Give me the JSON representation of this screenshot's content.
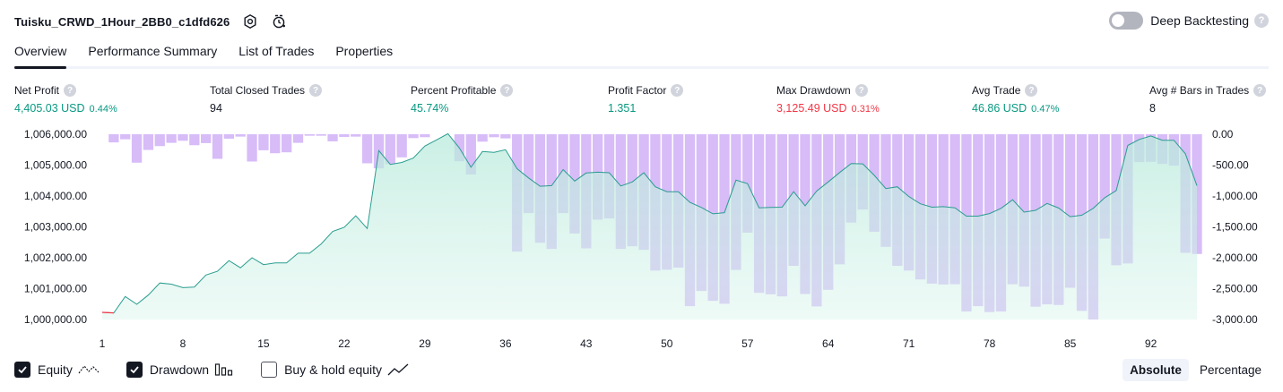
{
  "header": {
    "title": "Tuisku_CRWD_1Hour_2BB0_c1dfd626",
    "deep_backtesting_label": "Deep Backtesting",
    "deep_backtesting_enabled": false,
    "help_glyph": "?",
    "icons": [
      "settings-icon",
      "source-code-icon",
      "help-icon"
    ]
  },
  "tabs": [
    {
      "label": "Overview",
      "active": true
    },
    {
      "label": "Performance Summary",
      "active": false
    },
    {
      "label": "List of Trades",
      "active": false
    },
    {
      "label": "Properties",
      "active": false
    }
  ],
  "metrics": {
    "net_profit": {
      "label": "Net Profit",
      "value": "4,405.03 USD",
      "pct": "0.44%",
      "color": "#089981"
    },
    "total_closed_trades": {
      "label": "Total Closed Trades",
      "value": "94"
    },
    "percent_profitable": {
      "label": "Percent Profitable",
      "value": "45.74%",
      "color": "#089981"
    },
    "profit_factor": {
      "label": "Profit Factor",
      "value": "1.351",
      "color": "#089981"
    },
    "max_drawdown": {
      "label": "Max Drawdown",
      "value": "3,125.49 USD",
      "pct": "0.31%",
      "color": "#f23645"
    },
    "avg_trade": {
      "label": "Avg Trade",
      "value": "46.86 USD",
      "pct": "0.47%",
      "color": "#089981"
    },
    "avg_bars": {
      "label": "Avg # Bars in Trades",
      "value": "8"
    }
  },
  "chart_data": {
    "type": "area",
    "x_ticks": [
      "1",
      "8",
      "15",
      "22",
      "29",
      "36",
      "43",
      "50",
      "57",
      "64",
      "71",
      "78",
      "85",
      "92"
    ],
    "x_range": [
      1,
      96
    ],
    "left_axis": {
      "ticks": [
        "1,006,000.00",
        "1,005,000.00",
        "1,004,000.00",
        "1,003,000.00",
        "1,002,000.00",
        "1,001,000.00",
        "1,000,000.00"
      ],
      "range": [
        999750,
        1006200
      ]
    },
    "right_axis": {
      "ticks": [
        "0.00",
        "-500.00",
        "-1,000.00",
        "-1,500.00",
        "-2,000.00",
        "-2,500.00",
        "-3,000.00"
      ],
      "range": [
        -3125.49,
        0
      ]
    },
    "series": [
      {
        "name": "Equity",
        "kind": "area",
        "color": "#2a9d8f",
        "values": [
          1000000,
          999980,
          1000550,
          1000280,
          1000600,
          1001020,
          1000980,
          1000860,
          1000880,
          1001300,
          1001430,
          1001800,
          1001550,
          1001900,
          1001660,
          1001720,
          1001720,
          1002060,
          1002060,
          1002380,
          1002820,
          1002960,
          1003360,
          1002920,
          1005630,
          1005150,
          1005220,
          1005370,
          1005790,
          1006000,
          1006220,
          1005720,
          1005050,
          1005600,
          1005570,
          1005660,
          1005000,
          1004680,
          1004390,
          1004410,
          1004970,
          1004570,
          1004850,
          1004880,
          1004860,
          1004400,
          1004540,
          1004860,
          1004370,
          1004200,
          1004200,
          1003830,
          1003650,
          1003430,
          1003470,
          1004600,
          1004480,
          1003640,
          1003650,
          1003660,
          1004200,
          1003710,
          1004220,
          1004540,
          1004870,
          1005180,
          1005170,
          1004770,
          1004310,
          1004370,
          1004030,
          1003780,
          1003660,
          1003680,
          1003640,
          1003350,
          1003350,
          1003440,
          1003620,
          1003920,
          1003490,
          1003550,
          1003790,
          1003630,
          1003330,
          1003380,
          1003620,
          1003990,
          1004240,
          1005810,
          1006020,
          1006140,
          1005990,
          1005990,
          1005520,
          1004410
        ]
      },
      {
        "name": "Drawdown",
        "kind": "bar",
        "color": "#c9a6f6",
        "values": [
          0,
          -137,
          -85,
          -480,
          -265,
          -200,
          -145,
          -110,
          -185,
          -150,
          -415,
          -75,
          -40,
          -460,
          -270,
          -320,
          -305,
          -145,
          -25,
          -25,
          -120,
          -45,
          -40,
          -490,
          -575,
          -505,
          -390,
          -65,
          -50,
          0,
          0,
          -455,
          -680,
          -125,
          -50,
          -70,
          -1980,
          -1330,
          -1830,
          -1935,
          -1330,
          -1675,
          -1925,
          -1440,
          -1420,
          -1935,
          -1890,
          -1950,
          -2300,
          -2285,
          -2250,
          -2900,
          -2645,
          -2810,
          -2860,
          -2290,
          -1660,
          -2675,
          -2700,
          -2735,
          -2220,
          -2695,
          -2905,
          -2625,
          -2195,
          -1490,
          -1270,
          -1645,
          -1900,
          -2220,
          -2300,
          -2450,
          -2520,
          -2535,
          -2530,
          -2990,
          -2900,
          -3000,
          -2990,
          -2530,
          -2570,
          -2910,
          -2870,
          -2880,
          -2590,
          -2980,
          -3125,
          -1760,
          -2210,
          -2180,
          -470,
          -465,
          -500,
          -530,
          -2000,
          -2020
        ]
      }
    ],
    "fill_color": "#d9f4ec",
    "line_color": "#2a9d8f",
    "bar_color": "#c9a6f6",
    "grid": false
  },
  "legend": {
    "items": [
      {
        "label": "Equity",
        "checked": true,
        "icon": "equity-line-icon"
      },
      {
        "label": "Drawdown",
        "checked": true,
        "icon": "drawdown-bars-icon"
      },
      {
        "label": "Buy & hold equity",
        "checked": false,
        "icon": "buy-hold-line-icon"
      }
    ],
    "modes": [
      {
        "label": "Absolute",
        "active": true
      },
      {
        "label": "Percentage",
        "active": false
      }
    ]
  }
}
